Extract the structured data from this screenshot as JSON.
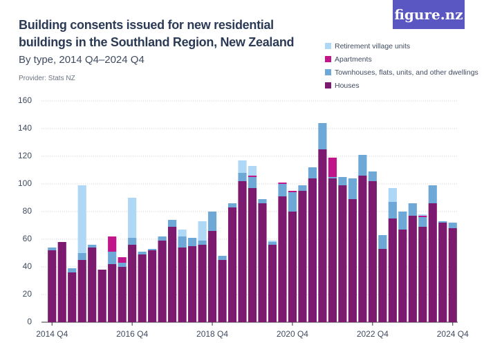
{
  "chart_data": {
    "type": "stacked-bar",
    "title": "Building consents issued for new residential buildings in the Southland Region, New Zealand",
    "subtitle": "By type, 2014 Q4–2024 Q4",
    "provider": "Provider: Stats NZ",
    "logo": "figure.nz",
    "categories": [
      "2014 Q4",
      null,
      null,
      null,
      null,
      null,
      null,
      null,
      "2016 Q4",
      null,
      null,
      null,
      null,
      null,
      null,
      null,
      "2018 Q4",
      null,
      null,
      null,
      null,
      null,
      null,
      null,
      "2020 Q4",
      null,
      null,
      null,
      null,
      null,
      null,
      null,
      "2022 Q4",
      null,
      null,
      null,
      null,
      null,
      null,
      null,
      "2024 Q4"
    ],
    "series": [
      {
        "name": "Retirement village units",
        "color": "#aed8f5",
        "values": [
          0,
          0,
          0,
          49,
          0,
          0,
          0,
          0,
          29,
          0,
          0,
          0,
          0,
          5,
          0,
          14,
          0,
          0,
          0,
          9,
          7,
          0,
          1,
          0,
          0,
          0,
          0,
          0,
          0,
          0,
          0,
          0,
          0,
          0,
          10,
          0,
          0,
          1,
          0,
          0,
          0
        ]
      },
      {
        "name": "Apartments",
        "color": "#c0168a",
        "values": [
          0,
          0,
          0,
          0,
          0,
          0,
          11,
          4,
          0,
          0,
          0,
          0,
          0,
          0,
          0,
          0,
          0,
          0,
          0,
          0,
          1,
          0,
          0,
          1,
          1,
          0,
          0,
          0,
          14,
          0,
          0,
          0,
          0,
          0,
          0,
          0,
          0,
          1,
          0,
          0,
          0
        ]
      },
      {
        "name": "Townhouses, flats, units, and other dwellings",
        "color": "#6ea8d6",
        "values": [
          2,
          0,
          3,
          5,
          2,
          0,
          9,
          3,
          5,
          2,
          1,
          3,
          5,
          8,
          6,
          3,
          14,
          3,
          3,
          6,
          8,
          3,
          2,
          9,
          14,
          4,
          8,
          19,
          1,
          6,
          15,
          15,
          7,
          10,
          12,
          13,
          9,
          7,
          13,
          1,
          4
        ]
      },
      {
        "name": "Houses",
        "color": "#7b1a6e",
        "values": [
          52,
          58,
          36,
          45,
          54,
          38,
          42,
          40,
          56,
          49,
          52,
          59,
          69,
          54,
          55,
          56,
          66,
          45,
          83,
          102,
          97,
          86,
          56,
          91,
          80,
          95,
          104,
          125,
          104,
          99,
          89,
          106,
          102,
          53,
          75,
          67,
          77,
          69,
          86,
          72,
          68
        ]
      }
    ],
    "ylim": [
      0,
      160
    ],
    "yticks": [
      0,
      20,
      40,
      60,
      80,
      100,
      120,
      140,
      160
    ],
    "grid": true
  }
}
